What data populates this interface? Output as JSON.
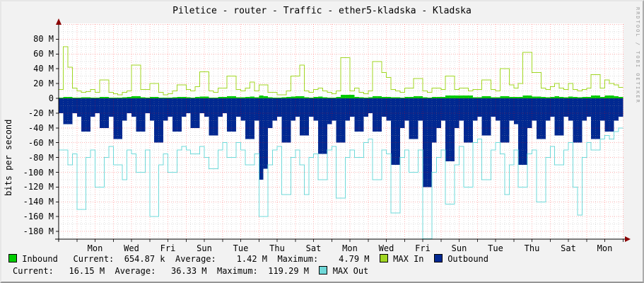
{
  "window": {
    "app": "rrdtool-graph"
  },
  "header": {
    "title": "Piletice - router - Traffic - ether5-kladska - Kladska"
  },
  "watermark": "RRDTOOL / TOBI OETIKER",
  "colors": {
    "inbound": "#00CC00",
    "max_in": "#A0D622",
    "outbound": "#012891",
    "max_out": "#6FD8D8",
    "axis": "#000000",
    "arrow": "#8B0000",
    "grid_major": "#FF0000",
    "grid_minor": "#999999",
    "plot_bg": "#FFFFFF"
  },
  "legend": {
    "row1": {
      "seg_inbound": " Inbound   Current:  654.87 k  Average:    1.42 M  Maximum:    4.79 M  ",
      "seg_max_in": " MAX In  ",
      "seg_outbound": " Outbound"
    },
    "row2": {
      "seg_stats": "Current:   16.15 M  Average:   36.33 M  Maximum:  119.29 M  ",
      "seg_max_out": " MAX Out"
    }
  },
  "chart_data": {
    "type": "area",
    "title": "Piletice - router - Traffic - ether5-kladska - Kladska",
    "xlabel": "",
    "ylabel": "bits per second",
    "unit": "Mbit/s",
    "ylim": [
      -190,
      100
    ],
    "grid": true,
    "legend_position": "bottom",
    "x_days": 31,
    "samples_per_day": 4,
    "y_tick_values": [
      80,
      60,
      40,
      20,
      0,
      -20,
      -40,
      -60,
      -80,
      -100,
      -120,
      -140,
      -160,
      -180
    ],
    "y_tick_labels": [
      "80 M",
      "60 M",
      "40 M",
      "20 M",
      "0",
      "-20 M",
      "-40 M",
      "-60 M",
      "-80 M",
      "-100 M",
      "-120 M",
      "-140 M",
      "-160 M",
      "-180 M"
    ],
    "x_tick_days": [
      2,
      4,
      6,
      8,
      10,
      12,
      14,
      16,
      18,
      20,
      22,
      24,
      26,
      28,
      30
    ],
    "x_tick_labels": [
      "Mon",
      "Wed",
      "Fri",
      "Sun",
      "Tue",
      "Thu",
      "Sat",
      "Mon",
      "Wed",
      "Fri",
      "Sun",
      "Tue",
      "Thu",
      "Sat",
      "Mon"
    ],
    "stats": {
      "inbound": {
        "current": "654.87 k",
        "average": "1.42 M",
        "maximum": "4.79 M"
      },
      "outbound": {
        "current": "16.15 M",
        "average": "36.33 M",
        "maximum": "119.29 M"
      }
    },
    "series": [
      {
        "name": "Inbound",
        "type": "area",
        "color": "#00CC00",
        "values": [
          1,
          2,
          2,
          1,
          1,
          1.5,
          1.5,
          1,
          1,
          2,
          2,
          1,
          1,
          1,
          1.5,
          2,
          3,
          3,
          1.5,
          1,
          2,
          2,
          1,
          1,
          1,
          1.5,
          2,
          2,
          1.5,
          1,
          2,
          2.5,
          2.5,
          1,
          1,
          2,
          2,
          3,
          3,
          1.5,
          1.5,
          2,
          2.5,
          1.5,
          4,
          3,
          1.5,
          1,
          1,
          1.5,
          2,
          2.5,
          3,
          3,
          1.5,
          1,
          2,
          2.5,
          1.5,
          1,
          1,
          2,
          5,
          5,
          5,
          2,
          1.5,
          1,
          1.5,
          3,
          3,
          2,
          2,
          1.5,
          1.5,
          1,
          2,
          2,
          3,
          3,
          1.5,
          1,
          2,
          2,
          2,
          4,
          4,
          4,
          4,
          4,
          4,
          1.5,
          1.5,
          3,
          3,
          1.5,
          1.5,
          3,
          3,
          2,
          2,
          2,
          4,
          4,
          2.5,
          2.5,
          2,
          1.5,
          2,
          3,
          2,
          1.5,
          2.5,
          2,
          1.5,
          2,
          2,
          4,
          4,
          2,
          4,
          4,
          3,
          2
        ]
      },
      {
        "name": "MAX In",
        "type": "step-line",
        "color": "#A0D622",
        "values": [
          12,
          70,
          42,
          14,
          10,
          8,
          9,
          12,
          8,
          25,
          25,
          8,
          6,
          5,
          8,
          10,
          45,
          45,
          12,
          12,
          20,
          20,
          8,
          5,
          6,
          10,
          18,
          18,
          12,
          10,
          16,
          36,
          36,
          10,
          8,
          14,
          14,
          30,
          30,
          12,
          10,
          14,
          22,
          10,
          18,
          18,
          8,
          8,
          5,
          5,
          10,
          30,
          30,
          45,
          10,
          8,
          12,
          14,
          10,
          8,
          6,
          10,
          55,
          55,
          10,
          14,
          8,
          6,
          10,
          50,
          50,
          35,
          28,
          12,
          10,
          8,
          14,
          14,
          27,
          27,
          10,
          8,
          14,
          14,
          12,
          30,
          30,
          12,
          14,
          14,
          10,
          12,
          12,
          25,
          25,
          12,
          10,
          40,
          40,
          18,
          14,
          20,
          62,
          62,
          35,
          35,
          14,
          12,
          16,
          20,
          14,
          12,
          20,
          12,
          10,
          12,
          14,
          32,
          32,
          14,
          25,
          20,
          18,
          15
        ]
      },
      {
        "name": "Outbound",
        "type": "area",
        "color": "#012891",
        "values": [
          -20,
          -35,
          -35,
          -20,
          -25,
          -45,
          -45,
          -25,
          -20,
          -40,
          -40,
          -25,
          -55,
          -55,
          -30,
          -20,
          -25,
          -45,
          -45,
          -20,
          -30,
          -60,
          -60,
          -30,
          -25,
          -45,
          -45,
          -25,
          -20,
          -40,
          -40,
          -20,
          -25,
          -50,
          -50,
          -25,
          -20,
          -45,
          -45,
          -25,
          -30,
          -55,
          -55,
          -30,
          -110,
          -95,
          -40,
          -30,
          -25,
          -60,
          -60,
          -30,
          -25,
          -50,
          -50,
          -25,
          -30,
          -75,
          -75,
          -35,
          -30,
          -60,
          -60,
          -30,
          -25,
          -45,
          -45,
          -25,
          -20,
          -45,
          -45,
          -25,
          -30,
          -90,
          -90,
          -40,
          -30,
          -55,
          -55,
          -30,
          -120,
          -120,
          -60,
          -40,
          -30,
          -85,
          -85,
          -40,
          -30,
          -60,
          -60,
          -30,
          -25,
          -50,
          -50,
          -25,
          -30,
          -60,
          -60,
          -30,
          -35,
          -90,
          -90,
          -40,
          -30,
          -55,
          -55,
          -30,
          -25,
          -50,
          -50,
          -25,
          -30,
          -60,
          -60,
          -30,
          -25,
          -55,
          -55,
          -30,
          -45,
          -45,
          -30,
          -25
        ]
      },
      {
        "name": "MAX Out",
        "type": "step-line",
        "color": "#6FD8D8",
        "values": [
          -70,
          -70,
          -90,
          -75,
          -150,
          -150,
          -80,
          -70,
          -120,
          -120,
          -80,
          -65,
          -90,
          -90,
          -110,
          -70,
          -75,
          -100,
          -100,
          -70,
          -160,
          -160,
          -90,
          -75,
          -100,
          -100,
          -70,
          -65,
          -70,
          -75,
          -75,
          -65,
          -80,
          -95,
          -95,
          -70,
          -60,
          -80,
          -80,
          -60,
          -70,
          -90,
          -90,
          -75,
          -160,
          -160,
          -90,
          -70,
          -65,
          -130,
          -130,
          -80,
          -70,
          -90,
          -130,
          -80,
          -75,
          -110,
          -110,
          -70,
          -65,
          -135,
          -135,
          -80,
          -70,
          -80,
          -80,
          -60,
          -55,
          -110,
          -110,
          -70,
          -75,
          -155,
          -155,
          -80,
          -70,
          -100,
          -100,
          -70,
          -195,
          -195,
          -100,
          -80,
          -70,
          -143,
          -143,
          -90,
          -65,
          -120,
          -120,
          -60,
          -55,
          -110,
          -110,
          -70,
          -60,
          -75,
          -130,
          -90,
          -70,
          -120,
          -120,
          -75,
          -70,
          -140,
          -140,
          -80,
          -65,
          -90,
          -90,
          -70,
          -60,
          -120,
          -158,
          -80,
          -60,
          -70,
          -70,
          -55,
          -50,
          -55,
          -45,
          -40
        ]
      }
    ]
  }
}
